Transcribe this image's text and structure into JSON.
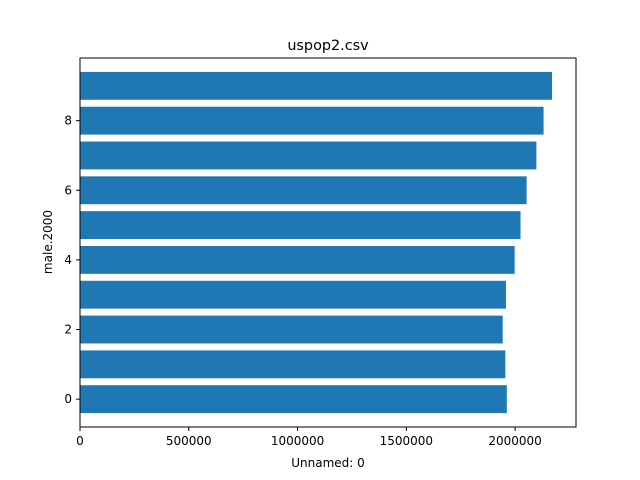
{
  "chart_data": {
    "type": "bar",
    "orientation": "horizontal",
    "title": "uspop2.csv",
    "xlabel": "Unnamed: 0",
    "ylabel": "male.2000",
    "categories": [
      0,
      1,
      2,
      3,
      4,
      5,
      6,
      7,
      8,
      9
    ],
    "values": [
      1962000,
      1955000,
      1943000,
      1958000,
      1998000,
      2025000,
      2053000,
      2098000,
      2131000,
      2170000
    ],
    "xlim": [
      0,
      2280000
    ],
    "ylim": [
      -0.8,
      9.8
    ],
    "xticks": [
      0,
      500000,
      1000000,
      1500000,
      2000000
    ],
    "yticks": [
      0,
      2,
      4,
      6,
      8
    ],
    "bar_color": "#1f77b4",
    "grid": false,
    "legend": "none"
  }
}
